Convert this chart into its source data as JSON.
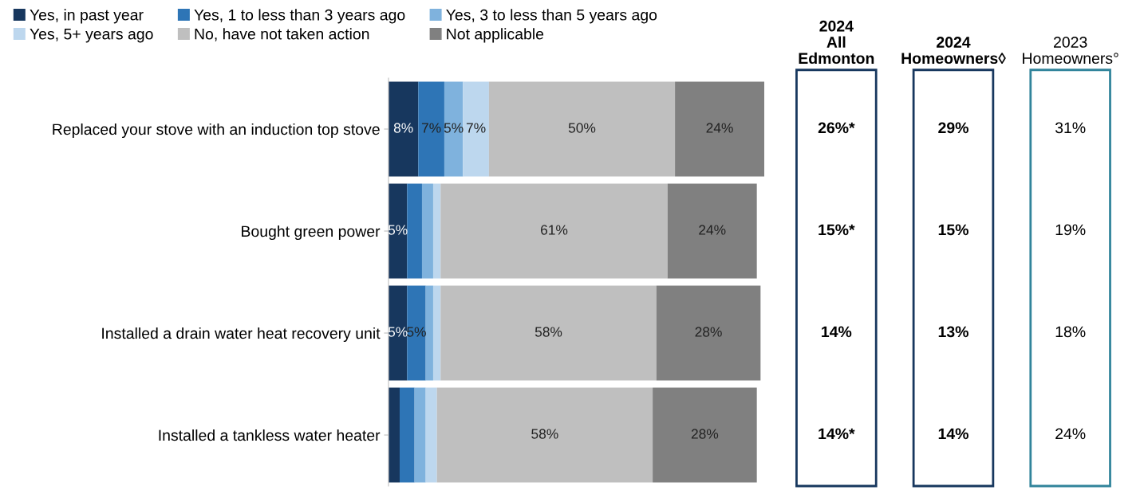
{
  "chart_data": [
    {
      "type": "bar",
      "orientation": "horizontal",
      "stacked": true,
      "legend": "top left",
      "categories": [
        "Replaced your stove with an induction top stove",
        "Bought green power",
        "Installed a drain water heat recovery unit",
        "Installed a tankless water heater"
      ],
      "xlim": [
        0,
        101
      ],
      "tick_labels": "y",
      "series": [
        {
          "name": "Yes, in past year",
          "color": "#17375e",
          "values": [
            8,
            5,
            5,
            3
          ],
          "value_labels": [
            "8%",
            "5%",
            "5%",
            null
          ]
        },
        {
          "name": "Yes, 1 to less than 3 years ago",
          "color": "#2e75b6",
          "values": [
            7,
            4,
            5,
            4
          ],
          "value_labels": [
            "7%",
            null,
            "5%",
            null
          ]
        },
        {
          "name": "Yes, 3 to less than 5 years ago",
          "color": "#7fb2dd",
          "values": [
            5,
            3,
            2,
            3
          ],
          "value_labels": [
            "5%",
            null,
            null,
            null
          ]
        },
        {
          "name": "Yes, 5+ years ago",
          "color": "#bdd7ee",
          "values": [
            7,
            2,
            2,
            3
          ],
          "value_labels": [
            "7%",
            null,
            null,
            null
          ]
        },
        {
          "name": "No, have not taken action",
          "color": "#bfbfbf",
          "values": [
            50,
            61,
            58,
            58
          ],
          "value_labels": [
            "50%",
            "61%",
            "58%",
            "58%"
          ]
        },
        {
          "name": "Not applicable",
          "color": "#808080",
          "values": [
            24,
            24,
            28,
            28
          ],
          "value_labels": [
            "24%",
            "24%",
            "28%",
            "28%"
          ]
        }
      ]
    },
    {
      "type": "other",
      "categories": [
        "2024\nAll\nEdmonton",
        "2024\nHomeowners◊",
        "2023\nHomeowners°"
      ],
      "colors": [
        "#17375e",
        "#17375e",
        "#31849b"
      ],
      "cell_labels": [
        [
          "26%*",
          "29%",
          "31%"
        ],
        [
          "15%*",
          "15%",
          "19%"
        ],
        [
          "14%",
          "13%",
          "18%"
        ],
        [
          "14%*",
          "14%",
          "24%"
        ]
      ]
    }
  ]
}
